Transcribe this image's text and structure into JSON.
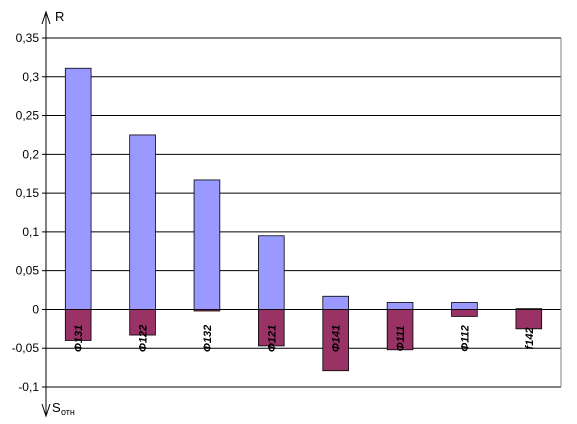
{
  "chart_data": {
    "type": "bar",
    "categories": [
      "Φ131",
      "Φ122",
      "Φ132",
      "Φ121",
      "Φ141",
      "Φ111",
      "Φ112",
      "f142"
    ],
    "series": [
      {
        "values": [
          0.311,
          0.225,
          0.167,
          0.095,
          0.017,
          0.009,
          0.009,
          0.001
        ],
        "color": "#9999ff"
      },
      {
        "values": [
          -0.04,
          -0.033,
          -0.002,
          -0.047,
          -0.079,
          -0.052,
          -0.009,
          -0.025
        ],
        "color": "#993366"
      }
    ],
    "y_axis": {
      "top_label": "R",
      "bottom_label_main": "S",
      "bottom_label_sub": "отн",
      "ticks": [
        "0,35",
        "0,3",
        "0,25",
        "0,2",
        "0,15",
        "0,1",
        "0,05",
        "0",
        "-0,05",
        "-0,1"
      ],
      "tick_values": [
        0.35,
        0.3,
        0.25,
        0.2,
        0.15,
        0.1,
        0.05,
        0,
        -0.05,
        -0.1
      ]
    },
    "ylim": [
      -0.1,
      0.35
    ],
    "grid": true,
    "legend": "none"
  }
}
